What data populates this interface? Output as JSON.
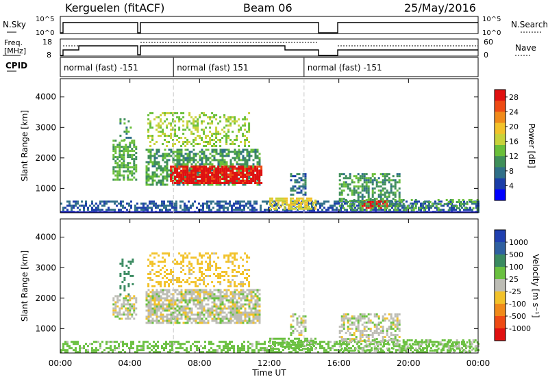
{
  "header": {
    "title": "Kerguelen (fitACF)",
    "beam": "Beam 06",
    "date": "25/May/2016"
  },
  "sky_panel": {
    "left_label": "N.Sky",
    "left_ticks": [
      "10^5",
      "10^0"
    ],
    "right_label": "N.Search",
    "right_ticks": [
      "10^5",
      "10^0"
    ]
  },
  "freq_panel": {
    "left_label_1": "Freq.",
    "left_label_2": "[MHz]",
    "left_ticks": [
      "18",
      "8"
    ],
    "right_label": "Nave",
    "right_ticks": [
      "60",
      "0"
    ]
  },
  "cpid": {
    "label": "CPID",
    "segments": [
      {
        "start": 0,
        "end": 6.5,
        "text": "normal (fast) -151"
      },
      {
        "start": 6.5,
        "end": 14.0,
        "text": "normal (fast) 151"
      },
      {
        "start": 14.0,
        "end": 24.0,
        "text": "normal (fast) -151"
      }
    ]
  },
  "chart_data": [
    {
      "type": "heatmap",
      "title": "",
      "xlabel": "Time UT",
      "ylabel": "Slant Range [km]",
      "x_ticks": [
        "00:00",
        "04:00",
        "08:00",
        "12:00",
        "16:00",
        "20:00",
        "00:00"
      ],
      "xlim": [
        0,
        24
      ],
      "ylim": [
        200,
        4600
      ],
      "y_ticks": [
        "1000",
        "2000",
        "3000",
        "4000"
      ],
      "colorbar": {
        "label": "Power [dB]",
        "ticks": [
          "4",
          "8",
          "12",
          "16",
          "20",
          "24",
          "28"
        ],
        "range": [
          0,
          30
        ],
        "colors": [
          "#0000ff",
          "#1a3da8",
          "#2f6f88",
          "#3f8f5a",
          "#6abf3a",
          "#c8d23a",
          "#f2c22a",
          "#f08a1a",
          "#ee4a14",
          "#e01010"
        ]
      },
      "regions": [
        {
          "t0": 0.0,
          "t1": 24.0,
          "r0": 200,
          "r1": 600,
          "value": 6,
          "density": 0.55
        },
        {
          "t0": 3.0,
          "t1": 4.3,
          "r0": 1300,
          "r1": 2600,
          "value": 12,
          "density": 0.6
        },
        {
          "t0": 3.4,
          "t1": 4.0,
          "r0": 2600,
          "r1": 3300,
          "value": 10,
          "density": 0.25
        },
        {
          "t0": 4.9,
          "t1": 11.5,
          "r0": 1100,
          "r1": 2300,
          "value": 11,
          "density": 0.65
        },
        {
          "t0": 6.3,
          "t1": 11.5,
          "r0": 1200,
          "r1": 1750,
          "value": 29,
          "density": 0.85
        },
        {
          "t0": 5.0,
          "t1": 10.8,
          "r0": 2400,
          "r1": 3500,
          "value": 15,
          "density": 0.35
        },
        {
          "t0": 12.0,
          "t1": 14.6,
          "r0": 300,
          "r1": 700,
          "value": 18,
          "density": 0.7
        },
        {
          "t0": 13.2,
          "t1": 14.1,
          "r0": 800,
          "r1": 1500,
          "value": 8,
          "density": 0.5
        },
        {
          "t0": 16.0,
          "t1": 19.5,
          "r0": 600,
          "r1": 1500,
          "value": 11,
          "density": 0.55
        },
        {
          "t0": 17.3,
          "t1": 18.8,
          "r0": 350,
          "r1": 600,
          "value": 29,
          "density": 0.8
        },
        {
          "t0": 16.0,
          "t1": 24.0,
          "r0": 300,
          "r1": 650,
          "value": 12,
          "density": 0.4
        }
      ]
    },
    {
      "type": "heatmap",
      "title": "",
      "xlabel": "Time UT",
      "ylabel": "Slant Range [km]",
      "x_ticks": [
        "00:00",
        "04:00",
        "08:00",
        "12:00",
        "16:00",
        "20:00",
        "00:00"
      ],
      "xlim": [
        0,
        24
      ],
      "ylim": [
        200,
        4600
      ],
      "y_ticks": [
        "1000",
        "2000",
        "3000",
        "4000"
      ],
      "colorbar": {
        "label": "Velocity [m s⁻¹]",
        "ticks": [
          "1000",
          "500",
          "100",
          "25",
          "-25",
          "-100",
          "-500",
          "-1000"
        ],
        "range": [
          -1200,
          1200
        ],
        "colors": [
          "#2040b0",
          "#2f60a0",
          "#3a8a60",
          "#6ac040",
          "#bdbdb5",
          "#f2c22a",
          "#f08a1a",
          "#ee4a14",
          "#e01010"
        ]
      },
      "regions": [
        {
          "t0": 0.0,
          "t1": 24.0,
          "r0": 200,
          "r1": 600,
          "value": 60,
          "density": 0.5
        },
        {
          "t0": 3.0,
          "t1": 4.3,
          "r0": 1300,
          "r1": 2100,
          "value": 0,
          "density": 0.6
        },
        {
          "t0": 3.4,
          "t1": 4.2,
          "r0": 2100,
          "r1": 3300,
          "value": 150,
          "density": 0.3
        },
        {
          "t0": 4.9,
          "t1": 11.5,
          "r0": 1200,
          "r1": 2300,
          "value": 0,
          "density": 0.75
        },
        {
          "t0": 5.0,
          "t1": 10.8,
          "r0": 2400,
          "r1": 3500,
          "value": -60,
          "density": 0.35
        },
        {
          "t0": 12.0,
          "t1": 14.6,
          "r0": 300,
          "r1": 700,
          "value": 60,
          "density": 0.6
        },
        {
          "t0": 13.2,
          "t1": 14.1,
          "r0": 800,
          "r1": 1500,
          "value": 0,
          "density": 0.45
        },
        {
          "t0": 16.0,
          "t1": 19.5,
          "r0": 600,
          "r1": 1500,
          "value": 0,
          "density": 0.55
        },
        {
          "t0": 16.0,
          "t1": 24.0,
          "r0": 300,
          "r1": 650,
          "value": 40,
          "density": 0.4
        }
      ]
    }
  ]
}
